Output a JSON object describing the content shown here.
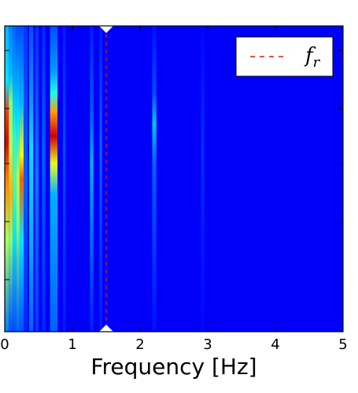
{
  "chart_data": {
    "type": "heatmap",
    "title": "",
    "xlabel": "Frequency [Hz]",
    "ylabel": "",
    "xlim": [
      0,
      5
    ],
    "ylim": [
      0,
      1
    ],
    "x_ticks": [
      0,
      1,
      2,
      3,
      4,
      5
    ],
    "x_tick_labels": [
      "0",
      "1",
      "2",
      "3",
      "4",
      "5"
    ],
    "y_ticks": [
      0.17,
      0.36,
      0.55,
      0.73,
      0.92
    ],
    "colormap": "jet",
    "background_value": 0.12,
    "columns": [
      {
        "x0": 0.0,
        "x1": 0.06,
        "profile": [
          [
            0.0,
            0.25
          ],
          [
            0.3,
            0.55
          ],
          [
            0.5,
            0.75
          ],
          [
            0.62,
            0.9
          ],
          [
            0.72,
            0.82
          ],
          [
            0.82,
            0.35
          ],
          [
            1.0,
            0.3
          ]
        ]
      },
      {
        "x0": 0.06,
        "x1": 0.12,
        "profile": [
          [
            0.0,
            0.2
          ],
          [
            0.3,
            0.5
          ],
          [
            0.45,
            0.7
          ],
          [
            0.6,
            0.55
          ],
          [
            0.75,
            0.5
          ],
          [
            0.85,
            0.3
          ],
          [
            1.0,
            0.25
          ]
        ]
      },
      {
        "x0": 0.12,
        "x1": 0.17,
        "profile": [
          [
            0.0,
            0.2
          ],
          [
            0.3,
            0.35
          ],
          [
            0.5,
            0.45
          ],
          [
            0.65,
            0.4
          ],
          [
            0.8,
            0.3
          ],
          [
            1.0,
            0.22
          ]
        ]
      },
      {
        "x0": 0.17,
        "x1": 0.22,
        "profile": [
          [
            0.0,
            0.22
          ],
          [
            0.35,
            0.5
          ],
          [
            0.5,
            0.55
          ],
          [
            0.7,
            0.35
          ],
          [
            1.0,
            0.2
          ]
        ]
      },
      {
        "x0": 0.22,
        "x1": 0.28,
        "profile": [
          [
            0.0,
            0.2
          ],
          [
            0.3,
            0.35
          ],
          [
            0.5,
            0.78
          ],
          [
            0.58,
            0.62
          ],
          [
            0.75,
            0.3
          ],
          [
            1.0,
            0.2
          ]
        ]
      },
      {
        "x0": 0.28,
        "x1": 0.34,
        "profile": [
          [
            0.0,
            0.16
          ],
          [
            0.5,
            0.22
          ],
          [
            1.0,
            0.18
          ]
        ]
      },
      {
        "x0": 0.36,
        "x1": 0.42,
        "profile": [
          [
            0.0,
            0.22
          ],
          [
            0.3,
            0.3
          ],
          [
            0.6,
            0.35
          ],
          [
            0.75,
            0.28
          ],
          [
            1.0,
            0.2
          ]
        ]
      },
      {
        "x0": 0.45,
        "x1": 0.5,
        "profile": [
          [
            0.0,
            0.18
          ],
          [
            0.5,
            0.25
          ],
          [
            1.0,
            0.17
          ]
        ]
      },
      {
        "x0": 0.55,
        "x1": 0.6,
        "profile": [
          [
            0.0,
            0.16
          ],
          [
            0.6,
            0.22
          ],
          [
            1.0,
            0.16
          ]
        ]
      },
      {
        "x0": 0.67,
        "x1": 0.78,
        "profile": [
          [
            0.0,
            0.22
          ],
          [
            0.45,
            0.3
          ],
          [
            0.55,
            0.6
          ],
          [
            0.64,
            0.92
          ],
          [
            0.72,
            0.72
          ],
          [
            0.78,
            0.4
          ],
          [
            0.85,
            0.28
          ],
          [
            1.0,
            0.2
          ]
        ]
      },
      {
        "x0": 0.86,
        "x1": 0.9,
        "profile": [
          [
            0.0,
            0.15
          ],
          [
            0.6,
            0.2
          ],
          [
            1.0,
            0.15
          ]
        ]
      },
      {
        "x0": 1.26,
        "x1": 1.31,
        "profile": [
          [
            0.0,
            0.15
          ],
          [
            0.55,
            0.3
          ],
          [
            0.7,
            0.22
          ],
          [
            1.0,
            0.15
          ]
        ]
      },
      {
        "x0": 1.4,
        "x1": 1.44,
        "profile": [
          [
            0.0,
            0.15
          ],
          [
            0.6,
            0.22
          ],
          [
            1.0,
            0.15
          ]
        ]
      },
      {
        "x0": 2.18,
        "x1": 2.24,
        "profile": [
          [
            0.0,
            0.14
          ],
          [
            0.55,
            0.22
          ],
          [
            0.68,
            0.32
          ],
          [
            0.78,
            0.2
          ],
          [
            1.0,
            0.14
          ]
        ]
      },
      {
        "x0": 2.9,
        "x1": 2.95,
        "profile": [
          [
            0.0,
            0.13
          ],
          [
            0.6,
            0.17
          ],
          [
            1.0,
            0.13
          ]
        ]
      }
    ],
    "reference_line": {
      "x": 1.5,
      "label": "f_r",
      "color": "#e31a1c",
      "style": "dashed"
    },
    "legend": {
      "placement": "top-right",
      "entries": [
        {
          "label_base": "f",
          "label_sub": "r",
          "color": "#e31a1c",
          "style": "dashed"
        }
      ]
    },
    "grid": false
  }
}
